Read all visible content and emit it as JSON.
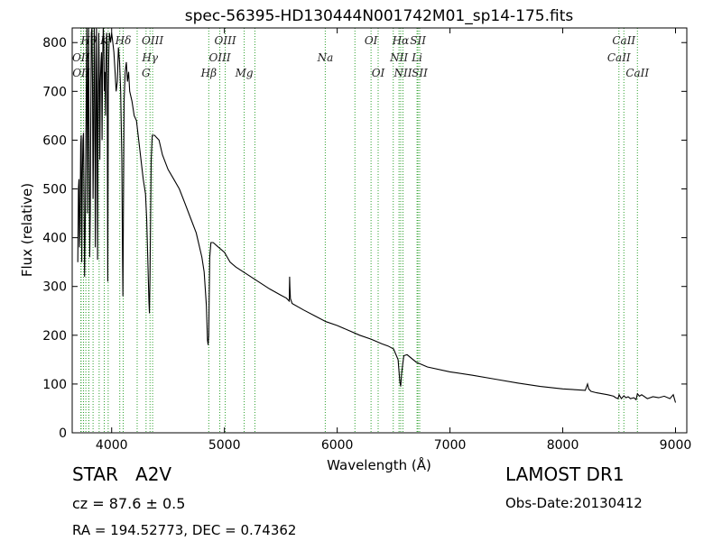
{
  "chart_data": {
    "type": "line",
    "title": "spec-56395-HD130444N001742M01_sp14-175.fits",
    "xlabel": "Wavelength (Å)",
    "ylabel": "Flux (relative)",
    "xlim": [
      3650,
      9100
    ],
    "ylim": [
      0,
      830
    ],
    "xticks": [
      4000,
      5000,
      6000,
      7000,
      8000,
      9000
    ],
    "yticks": [
      0,
      100,
      200,
      300,
      400,
      500,
      600,
      700,
      800
    ],
    "grid": false,
    "series": [
      {
        "color": "#000000",
        "x": [
          3700,
          3705,
          3710,
          3715,
          3720,
          3725,
          3730,
          3735,
          3740,
          3745,
          3750,
          3755,
          3760,
          3765,
          3770,
          3775,
          3780,
          3785,
          3790,
          3795,
          3800,
          3805,
          3810,
          3815,
          3820,
          3825,
          3830,
          3835,
          3840,
          3845,
          3850,
          3855,
          3860,
          3865,
          3870,
          3875,
          3880,
          3885,
          3890,
          3895,
          3900,
          3905,
          3910,
          3915,
          3920,
          3925,
          3930,
          3935,
          3940,
          3945,
          3950,
          3955,
          3960,
          3965,
          3970,
          3975,
          3980,
          3990,
          4000,
          4010,
          4020,
          4030,
          4040,
          4050,
          4060,
          4070,
          4080,
          4090,
          4095,
          4100,
          4105,
          4110,
          4120,
          4130,
          4140,
          4150,
          4160,
          4180,
          4200,
          4220,
          4240,
          4260,
          4280,
          4300,
          4310,
          4320,
          4330,
          4335,
          4340,
          4345,
          4350,
          4360,
          4380,
          4400,
          4420,
          4450,
          4500,
          4550,
          4600,
          4650,
          4700,
          4750,
          4800,
          4820,
          4840,
          4850,
          4855,
          4861,
          4865,
          4870,
          4880,
          4900,
          4950,
          5000,
          5050,
          5100,
          5200,
          5300,
          5400,
          5500,
          5550,
          5575,
          5578,
          5580,
          5585,
          5600,
          5700,
          5800,
          5900,
          6000,
          6100,
          6200,
          6300,
          6400,
          6450,
          6500,
          6540,
          6555,
          6563,
          6570,
          6590,
          6620,
          6700,
          6800,
          7000,
          7200,
          7400,
          7600,
          7800,
          8000,
          8200,
          8220,
          8230,
          8250,
          8300,
          8400,
          8450,
          8470,
          8490,
          8500,
          8520,
          8542,
          8560,
          8580,
          8600,
          8630,
          8650,
          8662,
          8680,
          8700,
          8750,
          8800,
          8850,
          8900,
          8950,
          8980,
          9000
        ],
        "y": [
          350,
          500,
          520,
          380,
          420,
          590,
          610,
          350,
          520,
          600,
          615,
          480,
          320,
          420,
          560,
          700,
          830,
          450,
          700,
          830,
          600,
          360,
          450,
          650,
          820,
          830,
          720,
          480,
          600,
          830,
          760,
          380,
          560,
          830,
          700,
          355,
          640,
          820,
          740,
          560,
          720,
          760,
          780,
          600,
          760,
          830,
          810,
          700,
          740,
          650,
          770,
          820,
          800,
          310,
          700,
          780,
          820,
          800,
          820,
          800,
          780,
          740,
          700,
          720,
          790,
          760,
          700,
          560,
          400,
          280,
          500,
          680,
          740,
          760,
          720,
          740,
          700,
          680,
          650,
          640,
          600,
          560,
          520,
          490,
          440,
          360,
          270,
          245,
          320,
          430,
          560,
          610,
          610,
          605,
          600,
          570,
          540,
          520,
          500,
          470,
          440,
          410,
          360,
          330,
          260,
          190,
          180,
          200,
          280,
          360,
          390,
          390,
          380,
          370,
          350,
          340,
          325,
          310,
          295,
          282,
          276,
          270,
          320,
          300,
          275,
          265,
          252,
          240,
          228,
          220,
          210,
          200,
          192,
          182,
          178,
          172,
          150,
          105,
          95,
          120,
          158,
          160,
          145,
          135,
          125,
          118,
          110,
          102,
          95,
          90,
          87,
          100,
          90,
          85,
          82,
          78,
          75,
          72,
          70,
          78,
          70,
          76,
          72,
          74,
          70,
          72,
          68,
          80,
          75,
          78,
          70,
          74,
          72,
          75,
          70,
          78,
          62
        ]
      }
    ],
    "lines": {
      "color": "#2ca02c",
      "labels": [
        {
          "text": "Hθ",
          "x": 3797,
          "row": 0
        },
        {
          "text": "OII",
          "x": 3727,
          "row": 1
        },
        {
          "text": "OII",
          "x": 3729,
          "row": 2
        },
        {
          "text": "K",
          "x": 3934,
          "row": 0
        },
        {
          "text": "Hδ",
          "x": 4102,
          "row": 0
        },
        {
          "text": "OIII",
          "x": 4363,
          "row": 0
        },
        {
          "text": "Hγ",
          "x": 4340,
          "row": 1
        },
        {
          "text": "G",
          "x": 4305,
          "row": 2
        },
        {
          "text": "OIII",
          "x": 5007,
          "row": 0
        },
        {
          "text": "OIII",
          "x": 4959,
          "row": 1
        },
        {
          "text": "Hβ",
          "x": 4861,
          "row": 2
        },
        {
          "text": "Mg",
          "x": 5175,
          "row": 2
        },
        {
          "text": "Na",
          "x": 5894,
          "row": 1
        },
        {
          "text": "OI",
          "x": 6300,
          "row": 0
        },
        {
          "text": "OI",
          "x": 6363,
          "row": 2
        },
        {
          "text": "Hα",
          "x": 6563,
          "row": 0
        },
        {
          "text": "SII",
          "x": 6716,
          "row": 0
        },
        {
          "text": "NII",
          "x": 6548,
          "row": 1
        },
        {
          "text": "Li",
          "x": 6708,
          "row": 1
        },
        {
          "text": "NII",
          "x": 6583,
          "row": 2
        },
        {
          "text": "SII",
          "x": 6731,
          "row": 2
        },
        {
          "text": "CaII",
          "x": 8542,
          "row": 0
        },
        {
          "text": "CaII",
          "x": 8498,
          "row": 1
        },
        {
          "text": "CaII",
          "x": 8662,
          "row": 2
        }
      ],
      "extra_x": [
        3750,
        3771,
        3798,
        3835,
        3889,
        3969,
        4072,
        4226,
        5270,
        6157,
        6497
      ]
    }
  },
  "info": {
    "class_label": "STAR   A2V",
    "cz_text": "cz = 87.6 ± 0.5",
    "radec_text": "RA = 194.52773, DEC = 0.74362",
    "survey_text": "LAMOST DR1",
    "obsdate_text": "Obs-Date:20130412"
  }
}
